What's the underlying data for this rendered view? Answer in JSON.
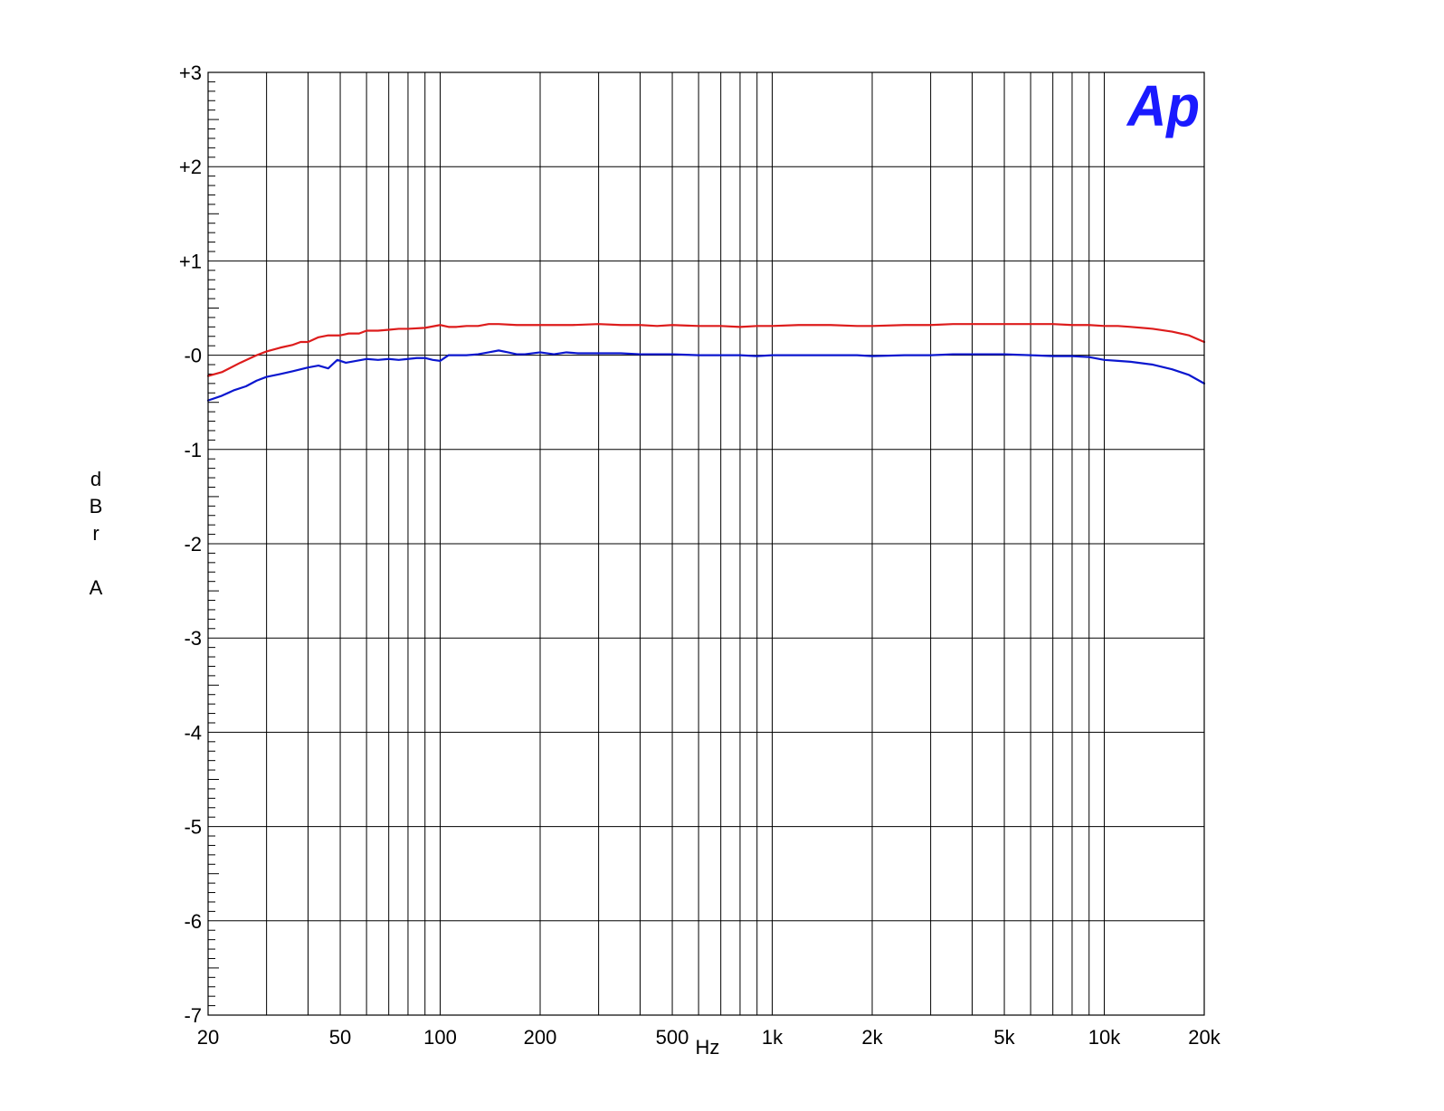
{
  "chart_data": {
    "type": "line",
    "title": "",
    "xlabel": "Hz",
    "ylabel": "dBr A",
    "x_scale": "log",
    "xlim": [
      20,
      20000
    ],
    "ylim": [
      -7,
      3
    ],
    "grid": true,
    "x_ticks": [
      {
        "value": 20,
        "label": "20"
      },
      {
        "value": 50,
        "label": "50"
      },
      {
        "value": 100,
        "label": "100"
      },
      {
        "value": 200,
        "label": "200"
      },
      {
        "value": 500,
        "label": "500"
      },
      {
        "value": 1000,
        "label": "1k"
      },
      {
        "value": 2000,
        "label": "2k"
      },
      {
        "value": 5000,
        "label": "5k"
      },
      {
        "value": 10000,
        "label": "10k"
      },
      {
        "value": 20000,
        "label": "20k"
      }
    ],
    "x_gridlines": [
      20,
      30,
      40,
      50,
      60,
      70,
      80,
      90,
      100,
      200,
      300,
      400,
      500,
      600,
      700,
      800,
      900,
      1000,
      2000,
      3000,
      4000,
      5000,
      6000,
      7000,
      8000,
      9000,
      10000,
      20000
    ],
    "y_ticks": [
      {
        "value": 3,
        "label": "+3"
      },
      {
        "value": 2,
        "label": "+2"
      },
      {
        "value": 1,
        "label": "+1"
      },
      {
        "value": 0,
        "label": "-0"
      },
      {
        "value": -1,
        "label": "-1"
      },
      {
        "value": -2,
        "label": "-2"
      },
      {
        "value": -3,
        "label": "-3"
      },
      {
        "value": -4,
        "label": "-4"
      },
      {
        "value": -5,
        "label": "-5"
      },
      {
        "value": -6,
        "label": "-6"
      },
      {
        "value": -7,
        "label": "-7"
      }
    ],
    "series": [
      {
        "color": "#dd1c1c",
        "points": [
          [
            20,
            -0.22
          ],
          [
            22,
            -0.18
          ],
          [
            25,
            -0.08
          ],
          [
            28,
            0.0
          ],
          [
            30,
            0.04
          ],
          [
            33,
            0.08
          ],
          [
            36,
            0.11
          ],
          [
            38,
            0.14
          ],
          [
            40,
            0.14
          ],
          [
            43,
            0.19
          ],
          [
            46,
            0.21
          ],
          [
            50,
            0.21
          ],
          [
            53,
            0.23
          ],
          [
            57,
            0.23
          ],
          [
            60,
            0.26
          ],
          [
            65,
            0.26
          ],
          [
            70,
            0.27
          ],
          [
            75,
            0.28
          ],
          [
            80,
            0.28
          ],
          [
            90,
            0.29
          ],
          [
            100,
            0.32
          ],
          [
            106,
            0.3
          ],
          [
            112,
            0.3
          ],
          [
            120,
            0.31
          ],
          [
            130,
            0.31
          ],
          [
            140,
            0.33
          ],
          [
            150,
            0.33
          ],
          [
            170,
            0.32
          ],
          [
            200,
            0.32
          ],
          [
            250,
            0.32
          ],
          [
            300,
            0.33
          ],
          [
            350,
            0.32
          ],
          [
            400,
            0.32
          ],
          [
            450,
            0.31
          ],
          [
            500,
            0.32
          ],
          [
            600,
            0.31
          ],
          [
            700,
            0.31
          ],
          [
            800,
            0.3
          ],
          [
            900,
            0.31
          ],
          [
            1000,
            0.31
          ],
          [
            1200,
            0.32
          ],
          [
            1500,
            0.32
          ],
          [
            1800,
            0.31
          ],
          [
            2000,
            0.31
          ],
          [
            2500,
            0.32
          ],
          [
            3000,
            0.32
          ],
          [
            3500,
            0.33
          ],
          [
            4000,
            0.33
          ],
          [
            5000,
            0.33
          ],
          [
            6000,
            0.33
          ],
          [
            7000,
            0.33
          ],
          [
            8000,
            0.32
          ],
          [
            9000,
            0.32
          ],
          [
            10000,
            0.31
          ],
          [
            11000,
            0.31
          ],
          [
            12000,
            0.3
          ],
          [
            14000,
            0.28
          ],
          [
            16000,
            0.25
          ],
          [
            18000,
            0.21
          ],
          [
            20000,
            0.14
          ]
        ]
      },
      {
        "color": "#0b17cf",
        "points": [
          [
            20,
            -0.48
          ],
          [
            22,
            -0.43
          ],
          [
            24,
            -0.37
          ],
          [
            26,
            -0.33
          ],
          [
            28,
            -0.27
          ],
          [
            30,
            -0.23
          ],
          [
            33,
            -0.2
          ],
          [
            36,
            -0.17
          ],
          [
            38,
            -0.15
          ],
          [
            40,
            -0.13
          ],
          [
            43,
            -0.11
          ],
          [
            46,
            -0.14
          ],
          [
            49,
            -0.05
          ],
          [
            52,
            -0.08
          ],
          [
            56,
            -0.06
          ],
          [
            60,
            -0.04
          ],
          [
            65,
            -0.05
          ],
          [
            70,
            -0.04
          ],
          [
            75,
            -0.05
          ],
          [
            80,
            -0.04
          ],
          [
            85,
            -0.03
          ],
          [
            90,
            -0.03
          ],
          [
            95,
            -0.05
          ],
          [
            100,
            -0.06
          ],
          [
            106,
            0.0
          ],
          [
            112,
            0.0
          ],
          [
            120,
            0.0
          ],
          [
            130,
            0.01
          ],
          [
            140,
            0.03
          ],
          [
            150,
            0.05
          ],
          [
            160,
            0.03
          ],
          [
            170,
            0.01
          ],
          [
            180,
            0.01
          ],
          [
            200,
            0.03
          ],
          [
            220,
            0.01
          ],
          [
            240,
            0.03
          ],
          [
            260,
            0.02
          ],
          [
            300,
            0.02
          ],
          [
            350,
            0.02
          ],
          [
            400,
            0.01
          ],
          [
            500,
            0.01
          ],
          [
            600,
            0.0
          ],
          [
            700,
            0.0
          ],
          [
            800,
            0.0
          ],
          [
            900,
            -0.01
          ],
          [
            1000,
            0.0
          ],
          [
            1200,
            0.0
          ],
          [
            1500,
            0.0
          ],
          [
            1800,
            0.0
          ],
          [
            2000,
            -0.01
          ],
          [
            2500,
            0.0
          ],
          [
            3000,
            0.0
          ],
          [
            3500,
            0.01
          ],
          [
            4000,
            0.01
          ],
          [
            5000,
            0.01
          ],
          [
            6000,
            0.0
          ],
          [
            7000,
            -0.01
          ],
          [
            8000,
            -0.01
          ],
          [
            9000,
            -0.02
          ],
          [
            10000,
            -0.05
          ],
          [
            11000,
            -0.06
          ],
          [
            12000,
            -0.07
          ],
          [
            14000,
            -0.1
          ],
          [
            16000,
            -0.15
          ],
          [
            18000,
            -0.21
          ],
          [
            20000,
            -0.3
          ]
        ]
      }
    ]
  },
  "logo": {
    "text": "Ap",
    "color": "#1a1aff"
  }
}
